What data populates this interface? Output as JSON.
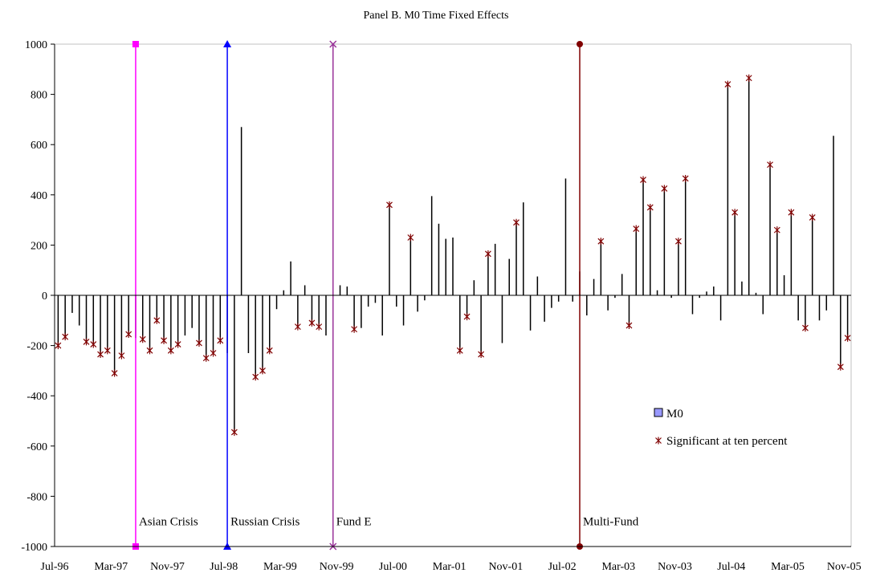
{
  "chart_data": {
    "type": "bar",
    "title": "Panel B. M0 Time Fixed Effects",
    "ylim": [
      -1000,
      1000
    ],
    "yticks": [
      1000,
      800,
      600,
      400,
      200,
      0,
      -200,
      -400,
      -600,
      -800,
      -1000
    ],
    "ytick_labels": [
      "1000",
      "800",
      "600",
      "400",
      "200",
      "0",
      "-200",
      "-400",
      "-600",
      "-800",
      "-1000"
    ],
    "xtick_labels": [
      "Jul-96",
      "Mar-97",
      "Nov-97",
      "Jul-98",
      "Mar-99",
      "Nov-99",
      "Jul-00",
      "Mar-01",
      "Nov-01",
      "Jul-02",
      "Mar-03",
      "Nov-03",
      "Jul-04",
      "Mar-05",
      "Nov-05"
    ],
    "series": [
      {
        "name": "M0",
        "color": "#9999ff",
        "values": [
          -200,
          -165,
          -70,
          -120,
          -185,
          -195,
          -235,
          -220,
          -310,
          -240,
          -155,
          -170,
          -175,
          -220,
          -100,
          -180,
          -220,
          -195,
          -160,
          -130,
          -190,
          -250,
          -230,
          -180,
          -230,
          -545,
          670,
          -230,
          -325,
          -300,
          -220,
          -55,
          20,
          135,
          -125,
          40,
          -110,
          -125,
          -160,
          15,
          40,
          35,
          -135,
          -130,
          -45,
          -30,
          -160,
          360,
          -45,
          -120,
          230,
          -65,
          -20,
          395,
          285,
          225,
          230,
          -220,
          -85,
          60,
          -235,
          165,
          205,
          -190,
          145,
          290,
          370,
          -140,
          75,
          -105,
          -50,
          -25,
          465,
          -25,
          95,
          -80,
          65,
          215,
          -60,
          -10,
          85,
          -120,
          265,
          460,
          350,
          20,
          425,
          -10,
          215,
          465,
          -75,
          -10,
          15,
          35,
          -100,
          840,
          330,
          55,
          865,
          10,
          -75,
          520,
          260,
          80,
          330,
          -100,
          -130,
          310,
          -100,
          -60,
          635,
          -285,
          -170
        ]
      },
      {
        "name": "Significant at ten percent",
        "color": "#800000",
        "marker": "x",
        "values": [
          -200,
          -165,
          null,
          null,
          -185,
          -195,
          -235,
          -220,
          -310,
          -240,
          -155,
          null,
          -175,
          -220,
          -100,
          -180,
          -220,
          -195,
          null,
          null,
          -190,
          -250,
          -230,
          -180,
          null,
          -545,
          null,
          null,
          -325,
          -300,
          -220,
          null,
          null,
          null,
          -125,
          null,
          -110,
          -125,
          null,
          null,
          null,
          null,
          -135,
          null,
          null,
          null,
          null,
          360,
          null,
          null,
          230,
          null,
          null,
          null,
          null,
          null,
          null,
          -220,
          -85,
          null,
          -235,
          165,
          null,
          null,
          null,
          290,
          null,
          null,
          null,
          null,
          null,
          null,
          null,
          null,
          null,
          null,
          null,
          215,
          null,
          null,
          null,
          -120,
          265,
          460,
          350,
          null,
          425,
          null,
          215,
          465,
          null,
          null,
          null,
          null,
          null,
          840,
          330,
          null,
          865,
          null,
          null,
          520,
          260,
          null,
          330,
          null,
          -130,
          310,
          null,
          null,
          null,
          -285,
          -170
        ]
      }
    ],
    "events": [
      {
        "label": "Asian Crisis",
        "index": 11,
        "color": "#ff00ff",
        "marker": "square"
      },
      {
        "label": "Russian Crisis",
        "index": 24,
        "color": "#0000ff",
        "marker": "triangle"
      },
      {
        "label": "Fund E",
        "index": 39,
        "color": "#993399",
        "marker": "x"
      },
      {
        "label": "Multi-Fund",
        "index": 74,
        "color": "#800000",
        "marker": "circle"
      }
    ],
    "legend": {
      "placement": "right",
      "entries": [
        {
          "label": "M0"
        },
        {
          "label": "Significant at ten percent"
        }
      ]
    }
  }
}
